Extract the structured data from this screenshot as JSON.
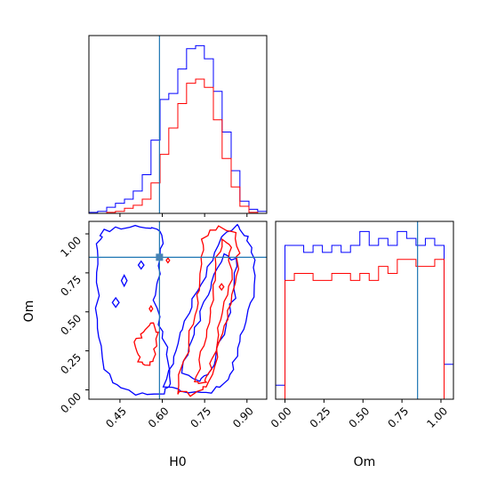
{
  "chart_data": {
    "type": "corner",
    "parameters": [
      "H0",
      "Om"
    ],
    "xlabels": {
      "h0": "H0",
      "om": "Om"
    },
    "ylabel": "Om",
    "truth": {
      "H0": 0.59,
      "Om": 0.85
    },
    "colors": {
      "series_a": "#0000ff",
      "series_b": "#ff0000",
      "truth": "#1f77b4"
    },
    "h0_ticks": [
      "0.45",
      "0.60",
      "0.75",
      "0.90"
    ],
    "om_ticks": [
      "0.00",
      "0.25",
      "0.50",
      "0.75",
      "1.00"
    ],
    "h0_range": [
      0.34,
      0.97
    ],
    "om_range": [
      -0.06,
      1.08
    ],
    "marginal_h0": {
      "range": [
        0.34,
        0.97
      ],
      "edges": [
        0.34,
        0.371,
        0.403,
        0.434,
        0.466,
        0.497,
        0.529,
        0.56,
        0.592,
        0.623,
        0.655,
        0.686,
        0.718,
        0.749,
        0.781,
        0.812,
        0.844,
        0.875,
        0.907,
        0.938,
        0.97
      ],
      "series": [
        {
          "color_key": "series_a",
          "counts": [
            1,
            2,
            6,
            10,
            14,
            22,
            38,
            72,
            112,
            118,
            142,
            162,
            165,
            152,
            120,
            80,
            42,
            12,
            4,
            2
          ]
        },
        {
          "color_key": "series_b",
          "counts": [
            0,
            0,
            1,
            2,
            5,
            8,
            14,
            30,
            58,
            84,
            108,
            128,
            132,
            124,
            92,
            54,
            26,
            7,
            1,
            0
          ]
        }
      ]
    },
    "marginal_om": {
      "range": [
        -0.06,
        1.08
      ],
      "edges": [
        -0.06,
        0.0,
        0.06,
        0.12,
        0.18,
        0.24,
        0.3,
        0.36,
        0.42,
        0.48,
        0.54,
        0.6,
        0.66,
        0.72,
        0.78,
        0.84,
        0.9,
        0.96,
        1.02,
        1.08
      ],
      "series": [
        {
          "color_key": "series_a",
          "counts": [
            2,
            22,
            22,
            21,
            22,
            21,
            22,
            21,
            22,
            24,
            22,
            23,
            22,
            24,
            23,
            22,
            23,
            22,
            5
          ]
        },
        {
          "color_key": "series_b",
          "counts": [
            0,
            17,
            18,
            18,
            17,
            17,
            18,
            18,
            17,
            18,
            17,
            19,
            18,
            20,
            20,
            19,
            19,
            20,
            0
          ]
        }
      ]
    },
    "contours": [
      {
        "color_key": "series_a",
        "points": [
          [
            0.39,
            1.02
          ],
          [
            0.48,
            1.05
          ],
          [
            0.56,
            1.04
          ],
          [
            0.6,
            1.0
          ],
          [
            0.59,
            0.8
          ],
          [
            0.57,
            0.62
          ],
          [
            0.59,
            0.42
          ],
          [
            0.62,
            0.22
          ],
          [
            0.63,
            0.05
          ],
          [
            0.6,
            -0.02
          ],
          [
            0.5,
            -0.02
          ],
          [
            0.42,
            0.05
          ],
          [
            0.38,
            0.22
          ],
          [
            0.37,
            0.45
          ],
          [
            0.37,
            0.75
          ],
          [
            0.37,
            0.95
          ]
        ]
      },
      {
        "color_key": "series_a",
        "points": [
          [
            0.61,
            0.02
          ],
          [
            0.64,
            0.22
          ],
          [
            0.67,
            0.4
          ],
          [
            0.71,
            0.58
          ],
          [
            0.76,
            0.78
          ],
          [
            0.81,
            0.98
          ],
          [
            0.86,
            1.05
          ],
          [
            0.9,
            0.98
          ],
          [
            0.93,
            0.84
          ],
          [
            0.92,
            0.6
          ],
          [
            0.89,
            0.4
          ],
          [
            0.86,
            0.22
          ],
          [
            0.83,
            0.06
          ],
          [
            0.78,
            -0.01
          ],
          [
            0.69,
            -0.02
          ]
        ]
      },
      {
        "color_key": "series_a",
        "points": [
          [
            0.67,
            0.12
          ],
          [
            0.7,
            0.32
          ],
          [
            0.74,
            0.5
          ],
          [
            0.78,
            0.7
          ],
          [
            0.82,
            0.86
          ],
          [
            0.86,
            0.84
          ],
          [
            0.86,
            0.65
          ],
          [
            0.83,
            0.45
          ],
          [
            0.8,
            0.28
          ],
          [
            0.77,
            0.12
          ],
          [
            0.73,
            0.06
          ]
        ]
      },
      {
        "color_key": "series_b",
        "points": [
          [
            0.65,
            -0.02
          ],
          [
            0.68,
            0.2
          ],
          [
            0.71,
            0.42
          ],
          [
            0.73,
            0.6
          ],
          [
            0.74,
            0.8
          ],
          [
            0.74,
            0.98
          ],
          [
            0.8,
            1.04
          ],
          [
            0.86,
            1.02
          ],
          [
            0.87,
            0.84
          ],
          [
            0.85,
            0.62
          ],
          [
            0.82,
            0.4
          ],
          [
            0.79,
            0.2
          ],
          [
            0.76,
            0.02
          ],
          [
            0.72,
            -0.03
          ]
        ]
      },
      {
        "color_key": "series_b",
        "points": [
          [
            0.72,
            0.04
          ],
          [
            0.74,
            0.24
          ],
          [
            0.76,
            0.44
          ],
          [
            0.78,
            0.62
          ],
          [
            0.79,
            0.8
          ],
          [
            0.81,
            0.96
          ],
          [
            0.84,
            0.92
          ],
          [
            0.84,
            0.72
          ],
          [
            0.81,
            0.5
          ],
          [
            0.79,
            0.3
          ],
          [
            0.77,
            0.12
          ],
          [
            0.75,
            0.04
          ]
        ]
      },
      {
        "color_key": "series_b",
        "points": [
          [
            0.5,
            0.28
          ],
          [
            0.53,
            0.36
          ],
          [
            0.56,
            0.44
          ],
          [
            0.58,
            0.36
          ],
          [
            0.57,
            0.22
          ],
          [
            0.55,
            0.15
          ],
          [
            0.52,
            0.18
          ]
        ]
      }
    ],
    "small_contours": [
      {
        "color_key": "series_a",
        "center": [
          0.435,
          0.56
        ],
        "radius": [
          0.012,
          0.03
        ]
      },
      {
        "color_key": "series_a",
        "center": [
          0.465,
          0.7
        ],
        "radius": [
          0.01,
          0.035
        ]
      },
      {
        "color_key": "series_a",
        "center": [
          0.525,
          0.8
        ],
        "radius": [
          0.01,
          0.025
        ]
      },
      {
        "color_key": "series_b",
        "center": [
          0.56,
          0.52
        ],
        "radius": [
          0.006,
          0.018
        ]
      },
      {
        "color_key": "series_b",
        "center": [
          0.62,
          0.83
        ],
        "radius": [
          0.006,
          0.015
        ]
      },
      {
        "color_key": "series_b",
        "center": [
          0.81,
          0.66
        ],
        "radius": [
          0.008,
          0.02
        ]
      }
    ]
  }
}
